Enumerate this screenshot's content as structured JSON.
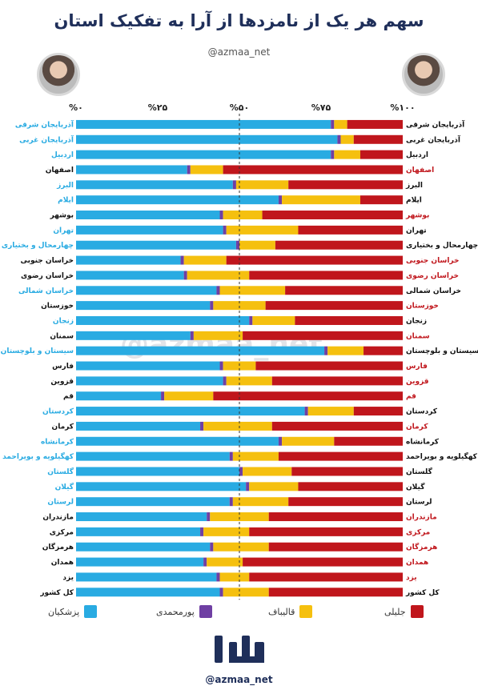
{
  "title": "سهم هر یک از نامزدها از آرا به تفکیک استان",
  "handle": "@azmaa_net",
  "colors": {
    "pezeshkian": "#29abe2",
    "pourmohammadi": "#6f3fa3",
    "ghalibaf": "#f5c00f",
    "jalili": "#c0161c"
  },
  "legend": [
    {
      "key": "jalili",
      "label": "جلیلی"
    },
    {
      "key": "ghalibaf",
      "label": "قالیباف"
    },
    {
      "key": "pourmohammadi",
      "label": "پورمحمدی"
    },
    {
      "key": "pezeshkian",
      "label": "پزشکیان"
    }
  ],
  "chart_data": {
    "type": "bar",
    "stacked": true,
    "orientation": "horizontal",
    "title": "سهم هر یک از نامزدها از آرا به تفکیک استان",
    "x_ticks": [
      "%۰",
      "%۲۵",
      "%۵۰",
      "%۷۵",
      "%۱۰۰"
    ],
    "xlim": [
      0,
      100
    ],
    "categories": [
      "آذربایجان شرقی",
      "آذربایجان غربی",
      "اردبیل",
      "اصفهان",
      "البرز",
      "ایلام",
      "بوشهر",
      "تهران",
      "چهارمحال و بختیاری",
      "خراسان جنوبی",
      "خراسان رضوی",
      "خراسان شمالی",
      "خوزستان",
      "زنجان",
      "سمنان",
      "سیستان و بلوچستان",
      "فارس",
      "قزوین",
      "قم",
      "کردستان",
      "کرمان",
      "کرمانشاه",
      "کهگیلویه و بویراحمد",
      "گلستان",
      "گیلان",
      "لرستان",
      "مازندران",
      "مرکزی",
      "هرمزگان",
      "همدان",
      "یزد",
      "کل کشور"
    ],
    "winner": [
      "pezeshkian",
      "pezeshkian",
      "pezeshkian",
      "jalili",
      "pezeshkian",
      "pezeshkian",
      "jalili",
      "pezeshkian",
      "pezeshkian",
      "jalili",
      "jalili",
      "pezeshkian",
      "jalili",
      "pezeshkian",
      "jalili",
      "pezeshkian",
      "jalili",
      "jalili",
      "jalili",
      "pezeshkian",
      "jalili",
      "pezeshkian",
      "pezeshkian",
      "pezeshkian",
      "pezeshkian",
      "pezeshkian",
      "jalili",
      "jalili",
      "jalili",
      "jalili",
      "jalili",
      "tie"
    ],
    "series": [
      {
        "name": "پزشکیان",
        "key": "pezeshkian",
        "values": [
          78,
          80,
          78,
          34,
          48,
          62,
          44,
          45,
          49,
          32,
          33,
          43,
          41,
          53,
          35,
          76,
          44,
          45,
          26,
          70,
          38,
          62,
          47,
          50,
          52,
          47,
          40,
          38,
          41,
          39,
          43,
          44
        ]
      },
      {
        "name": "پورمحمدی",
        "key": "pourmohammadi",
        "values": [
          1,
          1,
          1,
          1,
          1,
          1,
          1,
          1,
          1,
          1,
          1,
          1,
          1,
          1,
          1,
          1,
          1,
          1,
          1,
          1,
          1,
          1,
          1,
          1,
          1,
          1,
          1,
          1,
          1,
          1,
          1,
          1
        ]
      },
      {
        "name": "قالیباف",
        "key": "ghalibaf",
        "values": [
          4,
          4,
          8,
          10,
          16,
          24,
          12,
          22,
          11,
          13,
          19,
          20,
          16,
          13,
          15,
          11,
          10,
          14,
          15,
          14,
          21,
          16,
          14,
          15,
          15,
          17,
          18,
          14,
          17,
          11,
          9,
          14
        ]
      },
      {
        "name": "جلیلی",
        "key": "jalili",
        "values": [
          17,
          15,
          13,
          55,
          35,
          13,
          43,
          32,
          39,
          54,
          47,
          36,
          42,
          33,
          49,
          12,
          45,
          40,
          58,
          15,
          40,
          21,
          38,
          34,
          32,
          35,
          41,
          47,
          41,
          49,
          47,
          41
        ]
      }
    ]
  }
}
